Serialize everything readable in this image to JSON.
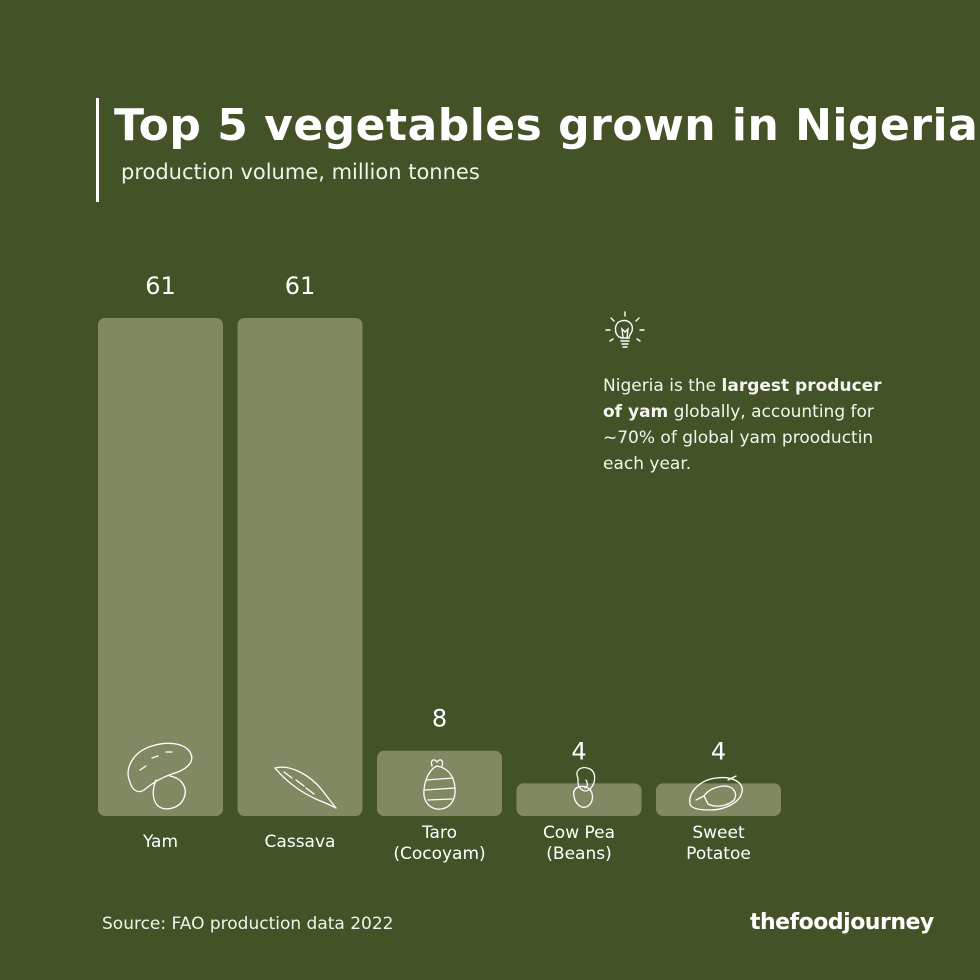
{
  "header": {
    "title": "Top 5 vegetables grown in Nigeria",
    "subtitle": "production volume, million tonnes"
  },
  "callout": {
    "icon": "lightbulb-icon",
    "text_pre": "Nigeria is the ",
    "text_bold": "largest producer of yam",
    "text_post": " globally, accounting for ~70% of global yam prooductin each year."
  },
  "footer": {
    "source": "Source: FAO production data 2022",
    "brand": "thefoodjourney"
  },
  "colors": {
    "background": "#435227",
    "bar": "#808962",
    "text": "#ffffff"
  },
  "chart_data": {
    "type": "bar",
    "title": "Top 5 vegetables grown in Nigeria",
    "subtitle": "production volume, million tonnes",
    "categories": [
      [
        "Yam"
      ],
      [
        "Cassava"
      ],
      [
        "Taro",
        "(Cocoyam)"
      ],
      [
        "Cow Pea",
        "(Beans)"
      ],
      [
        "Sweet",
        "Potatoe"
      ]
    ],
    "values": [
      61,
      61,
      8,
      4,
      4
    ],
    "icons": [
      "yam-icon",
      "cassava-icon",
      "taro-icon",
      "bean-icon",
      "sweet-potato-icon"
    ],
    "xlabel": "",
    "ylabel": "",
    "grid": false,
    "legend": "none"
  }
}
